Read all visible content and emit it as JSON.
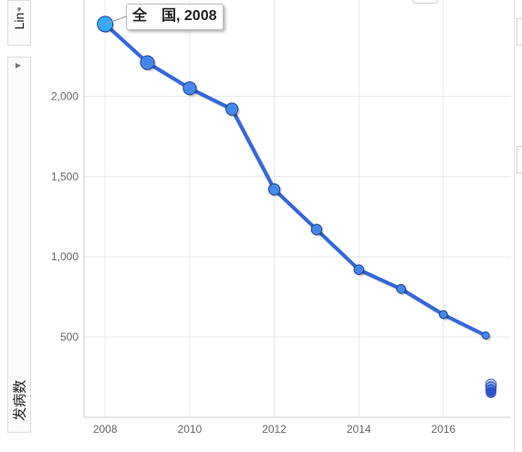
{
  "controls": {
    "scale_label": "Lin",
    "yaxis_label": "发病数"
  },
  "tooltip": {
    "region": "全　国",
    "year": "2008"
  },
  "colors": {
    "line": "#3366dd",
    "point": "#4488ee",
    "highlight": "#33aaff",
    "grid": "#e8e8e8"
  },
  "chart_data": {
    "type": "line",
    "x": [
      2008,
      2009,
      2010,
      2011,
      2012,
      2013,
      2014,
      2015,
      2016,
      2017
    ],
    "series": [
      {
        "name": "全　国",
        "values": [
          2450,
          2210,
          2050,
          1920,
          1420,
          1170,
          920,
          800,
          640,
          510
        ]
      }
    ],
    "xticks": [
      2008,
      2010,
      2012,
      2014,
      2016
    ],
    "yticks": [
      500,
      1000,
      1500,
      2000
    ],
    "ytick_labels": [
      "500",
      "1,000",
      "1,500",
      "2,000"
    ],
    "xlim": [
      2007.5,
      2017.6
    ],
    "ylim": [
      0,
      2600
    ],
    "grid": true,
    "legend_dots": 4
  }
}
